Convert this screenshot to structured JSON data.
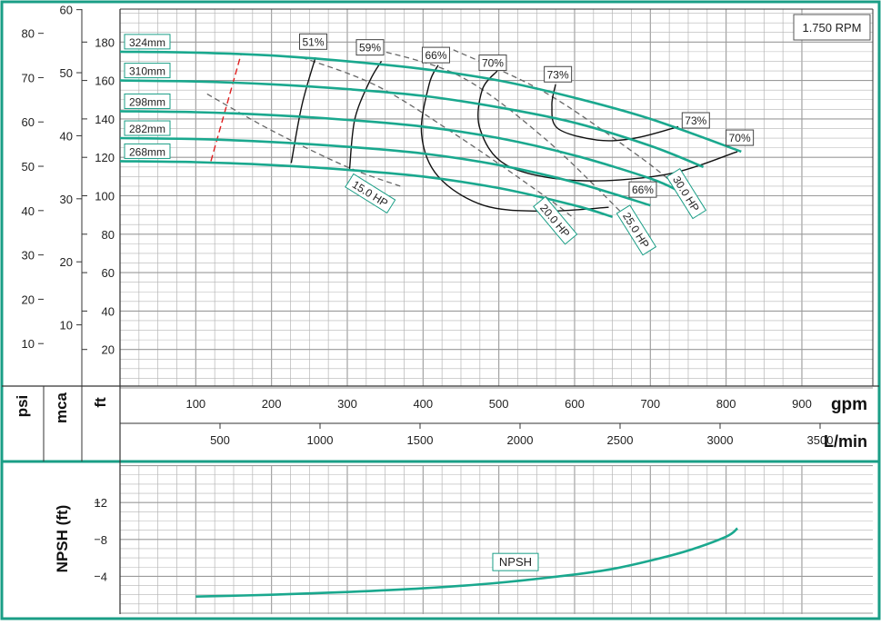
{
  "chart_data": {
    "type": "line",
    "title": "",
    "speed_label": "1.750 RPM",
    "colors": {
      "frame": "#1a9e86",
      "curve": "#1aa88e",
      "efficiency": "#111111",
      "power": "#666666",
      "min_flow": "#e02020",
      "grid": "#b5b5b5"
    },
    "x_primary": {
      "unit": "gpm",
      "range": [
        0,
        920
      ],
      "ticks": [
        100,
        200,
        300,
        400,
        500,
        600,
        700,
        800,
        900
      ]
    },
    "x_secondary": {
      "unit": "L/min",
      "ticks": [
        500,
        1000,
        1500,
        2000,
        2500,
        3000,
        3500
      ]
    },
    "y_head_ft": {
      "unit": "ft",
      "range": [
        0,
        190
      ],
      "ticks": [
        20,
        40,
        60,
        80,
        100,
        120,
        140,
        160,
        180
      ]
    },
    "y_head_mca": {
      "unit": "mca",
      "ticks": [
        10,
        20,
        30,
        40,
        50,
        60
      ]
    },
    "y_head_psi": {
      "unit": "psi",
      "ticks": [
        10,
        20,
        30,
        40,
        50,
        60,
        70,
        80
      ]
    },
    "series": [
      {
        "name": "324mm",
        "x": [
          0,
          100,
          200,
          300,
          400,
          500,
          600,
          700,
          820
        ],
        "y": [
          175,
          174.5,
          173,
          170,
          166,
          160,
          151,
          140,
          123
        ]
      },
      {
        "name": "310mm",
        "x": [
          0,
          100,
          200,
          300,
          400,
          500,
          600,
          700,
          770
        ],
        "y": [
          160,
          159.5,
          158,
          155.5,
          152,
          146,
          138,
          126,
          115
        ]
      },
      {
        "name": "298mm",
        "x": [
          0,
          100,
          200,
          300,
          400,
          500,
          600,
          700,
          740
        ],
        "y": [
          144,
          143.5,
          142,
          139.5,
          136,
          130,
          121,
          109,
          102
        ]
      },
      {
        "name": "282mm",
        "x": [
          0,
          100,
          200,
          300,
          400,
          500,
          600,
          700
        ],
        "y": [
          130,
          129.5,
          128,
          125.5,
          122,
          116,
          107,
          95
        ]
      },
      {
        "name": "268mm",
        "x": [
          0,
          100,
          200,
          300,
          400,
          500,
          600,
          650
        ],
        "y": [
          118,
          117.5,
          116,
          113.5,
          110,
          104,
          95,
          89
        ]
      }
    ],
    "efficiency_curves": [
      {
        "label": "51%",
        "x": [
          226,
          240,
          258
        ],
        "y": [
          117,
          147,
          172
        ]
      },
      {
        "label": "59%",
        "x": [
          303,
          310,
          330,
          345
        ],
        "y": [
          114,
          140,
          160,
          170
        ]
      },
      {
        "label": "66%",
        "x": [
          645,
          560,
          480,
          420,
          398,
          408,
          420
        ],
        "y": [
          94,
          92,
          95,
          110,
          132,
          158,
          168
        ]
      },
      {
        "label": "70%",
        "x": [
          815,
          720,
          600,
          510,
          475,
          478,
          498
        ],
        "y": [
          123,
          111,
          108,
          116,
          135,
          155,
          165
        ]
      },
      {
        "label": "73%",
        "x": [
          737,
          680,
          630,
          578,
          570,
          575
        ],
        "y": [
          136,
          130,
          129,
          135,
          147,
          158
        ]
      }
    ],
    "efficiency_labels": [
      {
        "text": "51%",
        "x": 255,
        "y": 180
      },
      {
        "text": "59%",
        "x": 330,
        "y": 177
      },
      {
        "text": "66%",
        "x": 417,
        "y": 173
      },
      {
        "text": "70%",
        "x": 492,
        "y": 169
      },
      {
        "text": "73%",
        "x": 578,
        "y": 163
      },
      {
        "text": "73%",
        "x": 760,
        "y": 139
      },
      {
        "text": "66%",
        "x": 690,
        "y": 103
      },
      {
        "text": "70%",
        "x": 818,
        "y": 130
      }
    ],
    "power_curves": [
      {
        "label": "15.0 HP",
        "x": [
          115,
          200,
          300,
          370
        ],
        "y": [
          153,
          134,
          115,
          105
        ]
      },
      {
        "label": "20.0 HP",
        "x": [
          240,
          340,
          450,
          560,
          600
        ],
        "y": [
          172,
          157,
          130,
          100,
          88
        ]
      },
      {
        "label": "25.0 HP",
        "x": [
          340,
          450,
          560,
          660
        ],
        "y": [
          176,
          162,
          130,
          92
        ]
      },
      {
        "label": "30.0 HP",
        "x": [
          440,
          560,
          680,
          735
        ],
        "y": [
          176,
          154,
          122,
          105
        ]
      }
    ],
    "power_labels": [
      {
        "text": "15.0 HP",
        "x": 330,
        "y": 101,
        "angle": 32
      },
      {
        "text": "20.0 HP",
        "x": 574,
        "y": 87,
        "angle": 50
      },
      {
        "text": "25.0 HP",
        "x": 681,
        "y": 82,
        "angle": 58
      },
      {
        "text": "30.0 HP",
        "x": 747,
        "y": 101,
        "angle": 58
      }
    ],
    "min_flow_line": {
      "x": [
        120,
        160
      ],
      "y": [
        118,
        174
      ]
    },
    "npsh": {
      "ylabel": "NPSH (ft)",
      "ticks": [
        4,
        8,
        12
      ],
      "range": [
        0,
        15.5
      ],
      "series": {
        "name": "NPSH",
        "x": [
          100,
          200,
          300,
          400,
          500,
          600,
          650,
          700,
          750,
          800,
          815
        ],
        "y": [
          1.8,
          2.0,
          2.3,
          2.7,
          3.3,
          4.2,
          4.8,
          5.7,
          6.8,
          8.3,
          9.2
        ]
      },
      "label": {
        "text": "NPSH",
        "x": 522,
        "y": 5.5
      }
    }
  }
}
